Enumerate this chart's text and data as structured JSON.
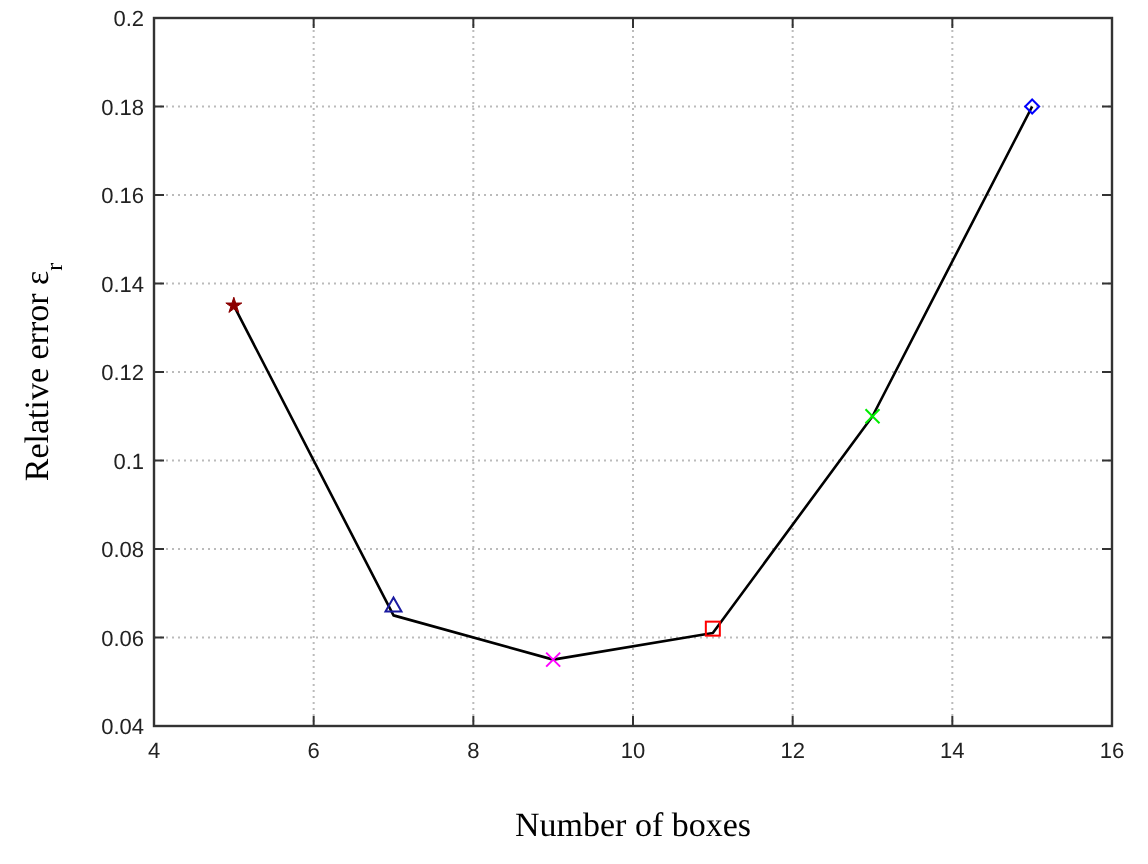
{
  "chart_data": {
    "type": "line",
    "xlabel": "Number of boxes",
    "ylabel": "Relative error ε$_{r}$",
    "xlim": [
      4,
      16
    ],
    "xticks": [
      4,
      6,
      8,
      10,
      12,
      14,
      16
    ],
    "ylim": [
      0.04,
      0.2
    ],
    "yticks": [
      0.04,
      0.06,
      0.08,
      0.1,
      0.12,
      0.14,
      0.16,
      0.18,
      0.2
    ],
    "grid": true,
    "series": [
      {
        "color": "#000000",
        "marker": "none",
        "line_style": "solid",
        "x": [
          5,
          7,
          9,
          11,
          13,
          15
        ],
        "values": [
          0.135,
          0.065,
          0.055,
          0.061,
          0.11,
          0.18
        ]
      },
      {
        "type": "scatter",
        "color": "#8b0000",
        "marker": "star",
        "x": [
          5
        ],
        "values": [
          0.135
        ]
      },
      {
        "type": "scatter",
        "color": "#1a1aa0",
        "marker": "triangle",
        "x": [
          7
        ],
        "values": [
          0.067
        ]
      },
      {
        "type": "scatter",
        "color": "#ff00ff",
        "marker": "cross",
        "x": [
          9
        ],
        "values": [
          0.055
        ]
      },
      {
        "type": "scatter",
        "color": "#ff0000",
        "marker": "square",
        "x": [
          11
        ],
        "values": [
          0.062
        ]
      },
      {
        "type": "scatter",
        "color": "#00ee00",
        "marker": "cross",
        "x": [
          13
        ],
        "values": [
          0.11
        ]
      },
      {
        "type": "scatter",
        "color": "#0000ff",
        "marker": "diamond",
        "x": [
          15
        ],
        "values": [
          0.18
        ]
      }
    ]
  }
}
